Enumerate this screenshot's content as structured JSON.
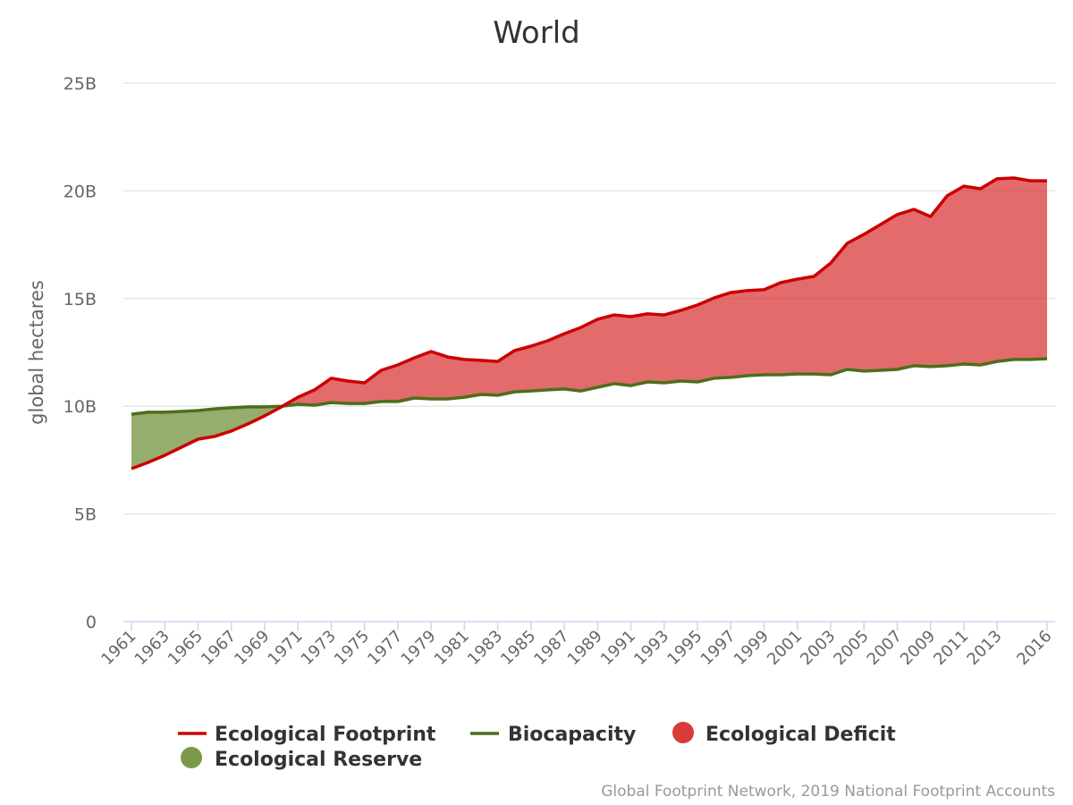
{
  "chart_data": {
    "type": "line",
    "title": "World",
    "xlabel": "",
    "ylabel": "global hectares",
    "ylim": [
      0,
      25
    ],
    "y_unit": "B",
    "y_ticks": [
      "0",
      "5B",
      "10B",
      "15B",
      "20B",
      "25B"
    ],
    "y_tick_values": [
      0,
      5,
      10,
      15,
      20,
      25
    ],
    "x_tick_labels": [
      "1961",
      "1963",
      "1965",
      "1967",
      "1969",
      "1971",
      "1973",
      "1975",
      "1977",
      "1979",
      "1981",
      "1983",
      "1985",
      "1987",
      "1989",
      "1991",
      "1993",
      "1995",
      "1997",
      "1999",
      "2001",
      "2003",
      "2005",
      "2007",
      "2009",
      "2011",
      "2013",
      "2016"
    ],
    "grid": true,
    "x": [
      1961,
      1962,
      1963,
      1964,
      1965,
      1966,
      1967,
      1968,
      1969,
      1970,
      1971,
      1972,
      1973,
      1974,
      1975,
      1976,
      1977,
      1978,
      1979,
      1980,
      1981,
      1982,
      1983,
      1984,
      1985,
      1986,
      1987,
      1988,
      1989,
      1990,
      1991,
      1992,
      1993,
      1994,
      1995,
      1996,
      1997,
      1998,
      1999,
      2000,
      2001,
      2002,
      2003,
      2004,
      2005,
      2006,
      2007,
      2008,
      2009,
      2010,
      2011,
      2012,
      2013,
      2014,
      2015,
      2016
    ],
    "series": [
      {
        "name": "Ecological Footprint",
        "color": "#cc0000",
        "values": [
          7.1,
          7.39,
          7.72,
          8.1,
          8.47,
          8.6,
          8.85,
          9.18,
          9.55,
          9.97,
          10.42,
          10.76,
          11.3,
          11.17,
          11.09,
          11.67,
          11.92,
          12.25,
          12.54,
          12.29,
          12.17,
          12.13,
          12.08,
          12.58,
          12.79,
          13.04,
          13.37,
          13.66,
          14.04,
          14.24,
          14.16,
          14.29,
          14.24,
          14.45,
          14.7,
          15.03,
          15.28,
          15.37,
          15.41,
          15.74,
          15.9,
          16.03,
          16.65,
          17.57,
          17.98,
          18.44,
          18.9,
          19.14,
          18.81,
          19.77,
          20.22,
          20.1,
          20.56,
          20.6,
          20.47,
          20.47
        ]
      },
      {
        "name": "Biocapacity",
        "color": "#4b6f1b",
        "values": [
          9.63,
          9.72,
          9.72,
          9.76,
          9.8,
          9.88,
          9.93,
          9.97,
          9.97,
          10.0,
          10.09,
          10.05,
          10.17,
          10.13,
          10.13,
          10.22,
          10.22,
          10.38,
          10.34,
          10.34,
          10.42,
          10.55,
          10.51,
          10.67,
          10.71,
          10.76,
          10.8,
          10.71,
          10.88,
          11.05,
          10.96,
          11.13,
          11.09,
          11.17,
          11.13,
          11.3,
          11.34,
          11.42,
          11.46,
          11.46,
          11.5,
          11.5,
          11.46,
          11.71,
          11.63,
          11.67,
          11.71,
          11.88,
          11.84,
          11.88,
          11.96,
          11.92,
          12.08,
          12.17,
          12.17,
          12.21
        ]
      }
    ],
    "areas": [
      {
        "name": "Ecological Deficit",
        "color": "#d93a3a"
      },
      {
        "name": "Ecological Reserve",
        "color": "#7a9a4a"
      }
    ],
    "legend_position": "bottom-left",
    "credit": "Global Footprint Network, 2019 National Footprint Accounts"
  }
}
